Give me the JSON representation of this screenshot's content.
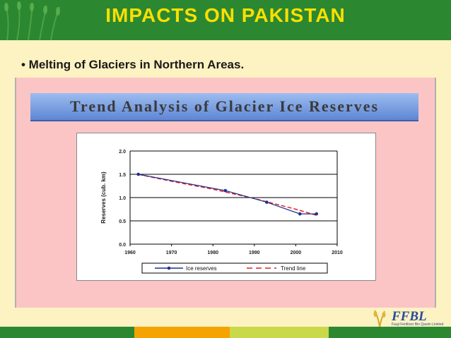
{
  "slide": {
    "title": "IMPACTS ON PAKISTAN",
    "bullet": "• Melting of Glaciers in Northern Areas.",
    "banner": "Trend Analysis of Glacier Ice Reserves"
  },
  "colors": {
    "header_green": "#2b8830",
    "title_yellow": "#fcdf00",
    "panel_pink": "#fcc5c5",
    "series_ice": "#1f2f8f",
    "series_trend": "#e02020"
  },
  "chart_data": {
    "type": "line",
    "title": "",
    "xlabel": "",
    "ylabel": "Reserves (cub. km)",
    "xlim": [
      1960,
      2010
    ],
    "ylim": [
      0.0,
      2.0
    ],
    "x_ticks": [
      "1960",
      "1970",
      "1980",
      "1990",
      "2000",
      "2010"
    ],
    "y_ticks": [
      "0.0",
      "0.5",
      "1.0",
      "1.5",
      "2.0"
    ],
    "grid": "horizontal",
    "legend": "bottom",
    "series": [
      {
        "name": "Ice reserves",
        "style": "solid-markers",
        "x": [
          1962,
          1983,
          1993,
          2001,
          2005
        ],
        "y": [
          1.5,
          1.15,
          0.9,
          0.65,
          0.65
        ]
      },
      {
        "name": "Trend line",
        "style": "dashed",
        "x": [
          1962,
          1970,
          1980,
          1990,
          2000,
          2005
        ],
        "y": [
          1.5,
          1.35,
          1.18,
          0.98,
          0.75,
          0.62
        ]
      }
    ]
  },
  "logo": {
    "name": "FFBL",
    "subtitle": "Fauji Fertilizer Bin Qasim Limited"
  }
}
